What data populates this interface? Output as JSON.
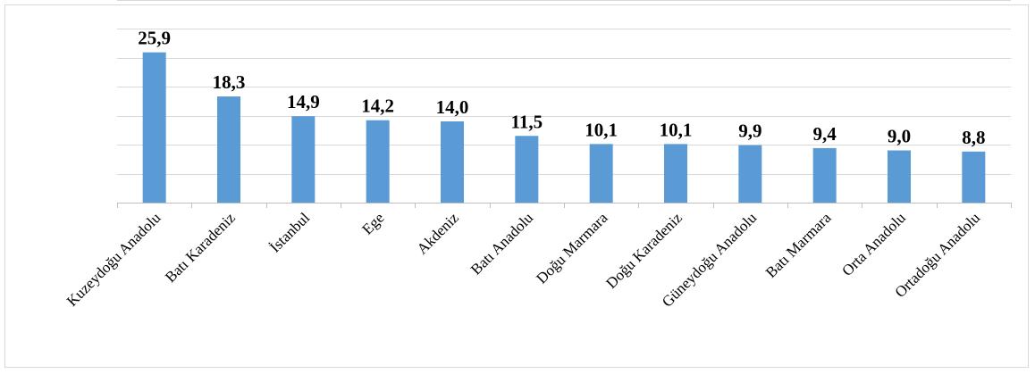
{
  "chart_data": {
    "type": "bar",
    "categories": [
      "Kuzeydoğu Anadolu",
      "Batı Karadeniz",
      "İstanbul",
      "Ege",
      "Akdeniz",
      "Batı Anadolu",
      "Doğu Marmara",
      "Doğu Karadeniz",
      "Güneydoğu Anadolu",
      "Batı Marmara",
      "Orta Anadolu",
      "Ortadoğu Anadolu"
    ],
    "values": [
      25.9,
      18.3,
      14.9,
      14.2,
      14.0,
      11.5,
      10.1,
      10.1,
      9.9,
      9.4,
      9.0,
      8.8
    ],
    "value_labels": [
      "25,9",
      "18,3",
      "14,9",
      "14,2",
      "14,0",
      "11,5",
      "10,1",
      "10,1",
      "9,9",
      "9,4",
      "9,0",
      "8,8"
    ],
    "ylim": [
      0,
      35
    ],
    "ytick_step": 5,
    "grid": true,
    "bar_color": "#5b9bd5",
    "grid_color": "#d9d9d9",
    "axis_color": "#bfbfbf"
  }
}
